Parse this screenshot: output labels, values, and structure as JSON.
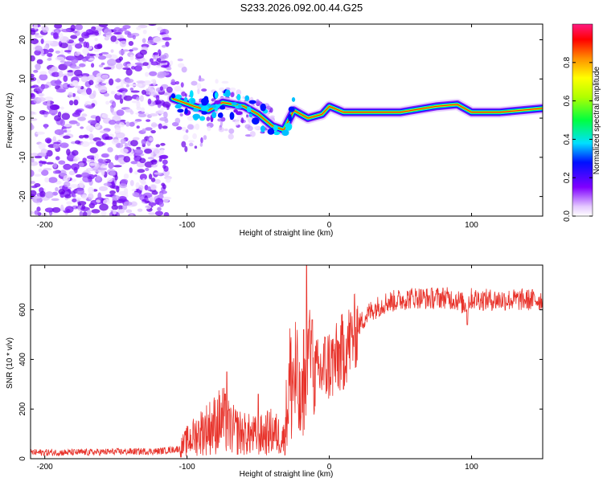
{
  "title": "S233.2026.092.00.44.G25",
  "colors": {
    "snr_line": "#e8332b",
    "axis": "#000000"
  },
  "chart_data": [
    {
      "type": "heatmap",
      "name": "spectrogram",
      "xlabel": "Height of straight line (km)",
      "ylabel": "Frequency (Hz)",
      "xlim": [
        -210,
        150
      ],
      "ylim": [
        -25,
        24
      ],
      "xticks": [
        -200,
        -100,
        0,
        100
      ],
      "xtick_labels": [
        "-200",
        "-100",
        "0",
        "100"
      ],
      "yticks": [
        -20,
        -10,
        0,
        10,
        20
      ],
      "ytick_labels": [
        "-20",
        "-10",
        "0",
        "10",
        "20"
      ],
      "colorbar": {
        "label": "Normalized spectral amplitude",
        "range": [
          0,
          1
        ],
        "ticks": [
          0.0,
          0.2,
          0.4,
          0.6,
          0.8
        ],
        "tick_labels": [
          "0.0",
          "0.2",
          "0.4",
          "0.6",
          "0.8"
        ]
      },
      "regions": [
        {
          "desc": "broadband noise",
          "x": [
            -210,
            -113
          ],
          "f": [
            -25,
            24
          ],
          "amp": 0.2
        },
        {
          "desc": "scattered energy",
          "x": [
            -113,
            -40
          ],
          "f": [
            -10,
            16
          ],
          "amp": 0.3
        },
        {
          "desc": "tone",
          "x": [
            -30,
            150
          ],
          "f_center": 1.5,
          "amp": 0.9
        }
      ],
      "ridge": [
        {
          "x": -110,
          "f": 5
        },
        {
          "x": -95,
          "f": 3
        },
        {
          "x": -85,
          "f": 2
        },
        {
          "x": -75,
          "f": 4
        },
        {
          "x": -60,
          "f": 3
        },
        {
          "x": -50,
          "f": 1
        },
        {
          "x": -40,
          "f": -2
        },
        {
          "x": -32,
          "f": -3
        },
        {
          "x": -25,
          "f": 2
        },
        {
          "x": -15,
          "f": 0
        },
        {
          "x": -5,
          "f": 1
        },
        {
          "x": 0,
          "f": 3
        },
        {
          "x": 10,
          "f": 1.5
        },
        {
          "x": 50,
          "f": 1.5
        },
        {
          "x": 75,
          "f": 3
        },
        {
          "x": 90,
          "f": 3.5
        },
        {
          "x": 100,
          "f": 1.5
        },
        {
          "x": 120,
          "f": 1.5
        },
        {
          "x": 150,
          "f": 2.5
        }
      ]
    },
    {
      "type": "line",
      "name": "snr",
      "xlabel": "Height of straight line (km)",
      "ylabel": "SNR (10 * v/v)",
      "xlim": [
        -210,
        150
      ],
      "ylim": [
        0,
        780
      ],
      "xticks": [
        -200,
        -100,
        0,
        100
      ],
      "xtick_labels": [
        "-200",
        "-100",
        "0",
        "100"
      ],
      "yticks": [
        0,
        200,
        400,
        600
      ],
      "ytick_labels": [
        "0",
        "200",
        "400",
        "600"
      ],
      "series": [
        {
          "name": "SNR",
          "x": [
            -210,
            -180,
            -150,
            -120,
            -105,
            -100,
            -90,
            -80,
            -75,
            -70,
            -60,
            -50,
            -40,
            -32,
            -28,
            -24,
            -20,
            -16,
            -14,
            -12,
            -10,
            -8,
            -5,
            0,
            5,
            10,
            15,
            20,
            25,
            30,
            40,
            50,
            60,
            70,
            80,
            90,
            95,
            100,
            110,
            120,
            130,
            140,
            150
          ],
          "values": [
            25,
            25,
            28,
            30,
            40,
            70,
            110,
            140,
            160,
            120,
            100,
            90,
            110,
            80,
            300,
            330,
            180,
            330,
            520,
            280,
            340,
            330,
            360,
            380,
            390,
            440,
            480,
            530,
            570,
            600,
            630,
            640,
            650,
            645,
            650,
            640,
            620,
            645,
            640,
            640,
            640,
            640,
            640
          ]
        }
      ],
      "spikes": [
        {
          "x": -72,
          "value": 350
        },
        {
          "x": -50,
          "value": 260
        },
        {
          "x": -18,
          "value": 520
        },
        {
          "x": -16,
          "value": 780
        },
        {
          "x": -12,
          "value": 560
        },
        {
          "x": 10,
          "value": 280
        },
        {
          "x": 97,
          "value": 540
        }
      ]
    }
  ]
}
